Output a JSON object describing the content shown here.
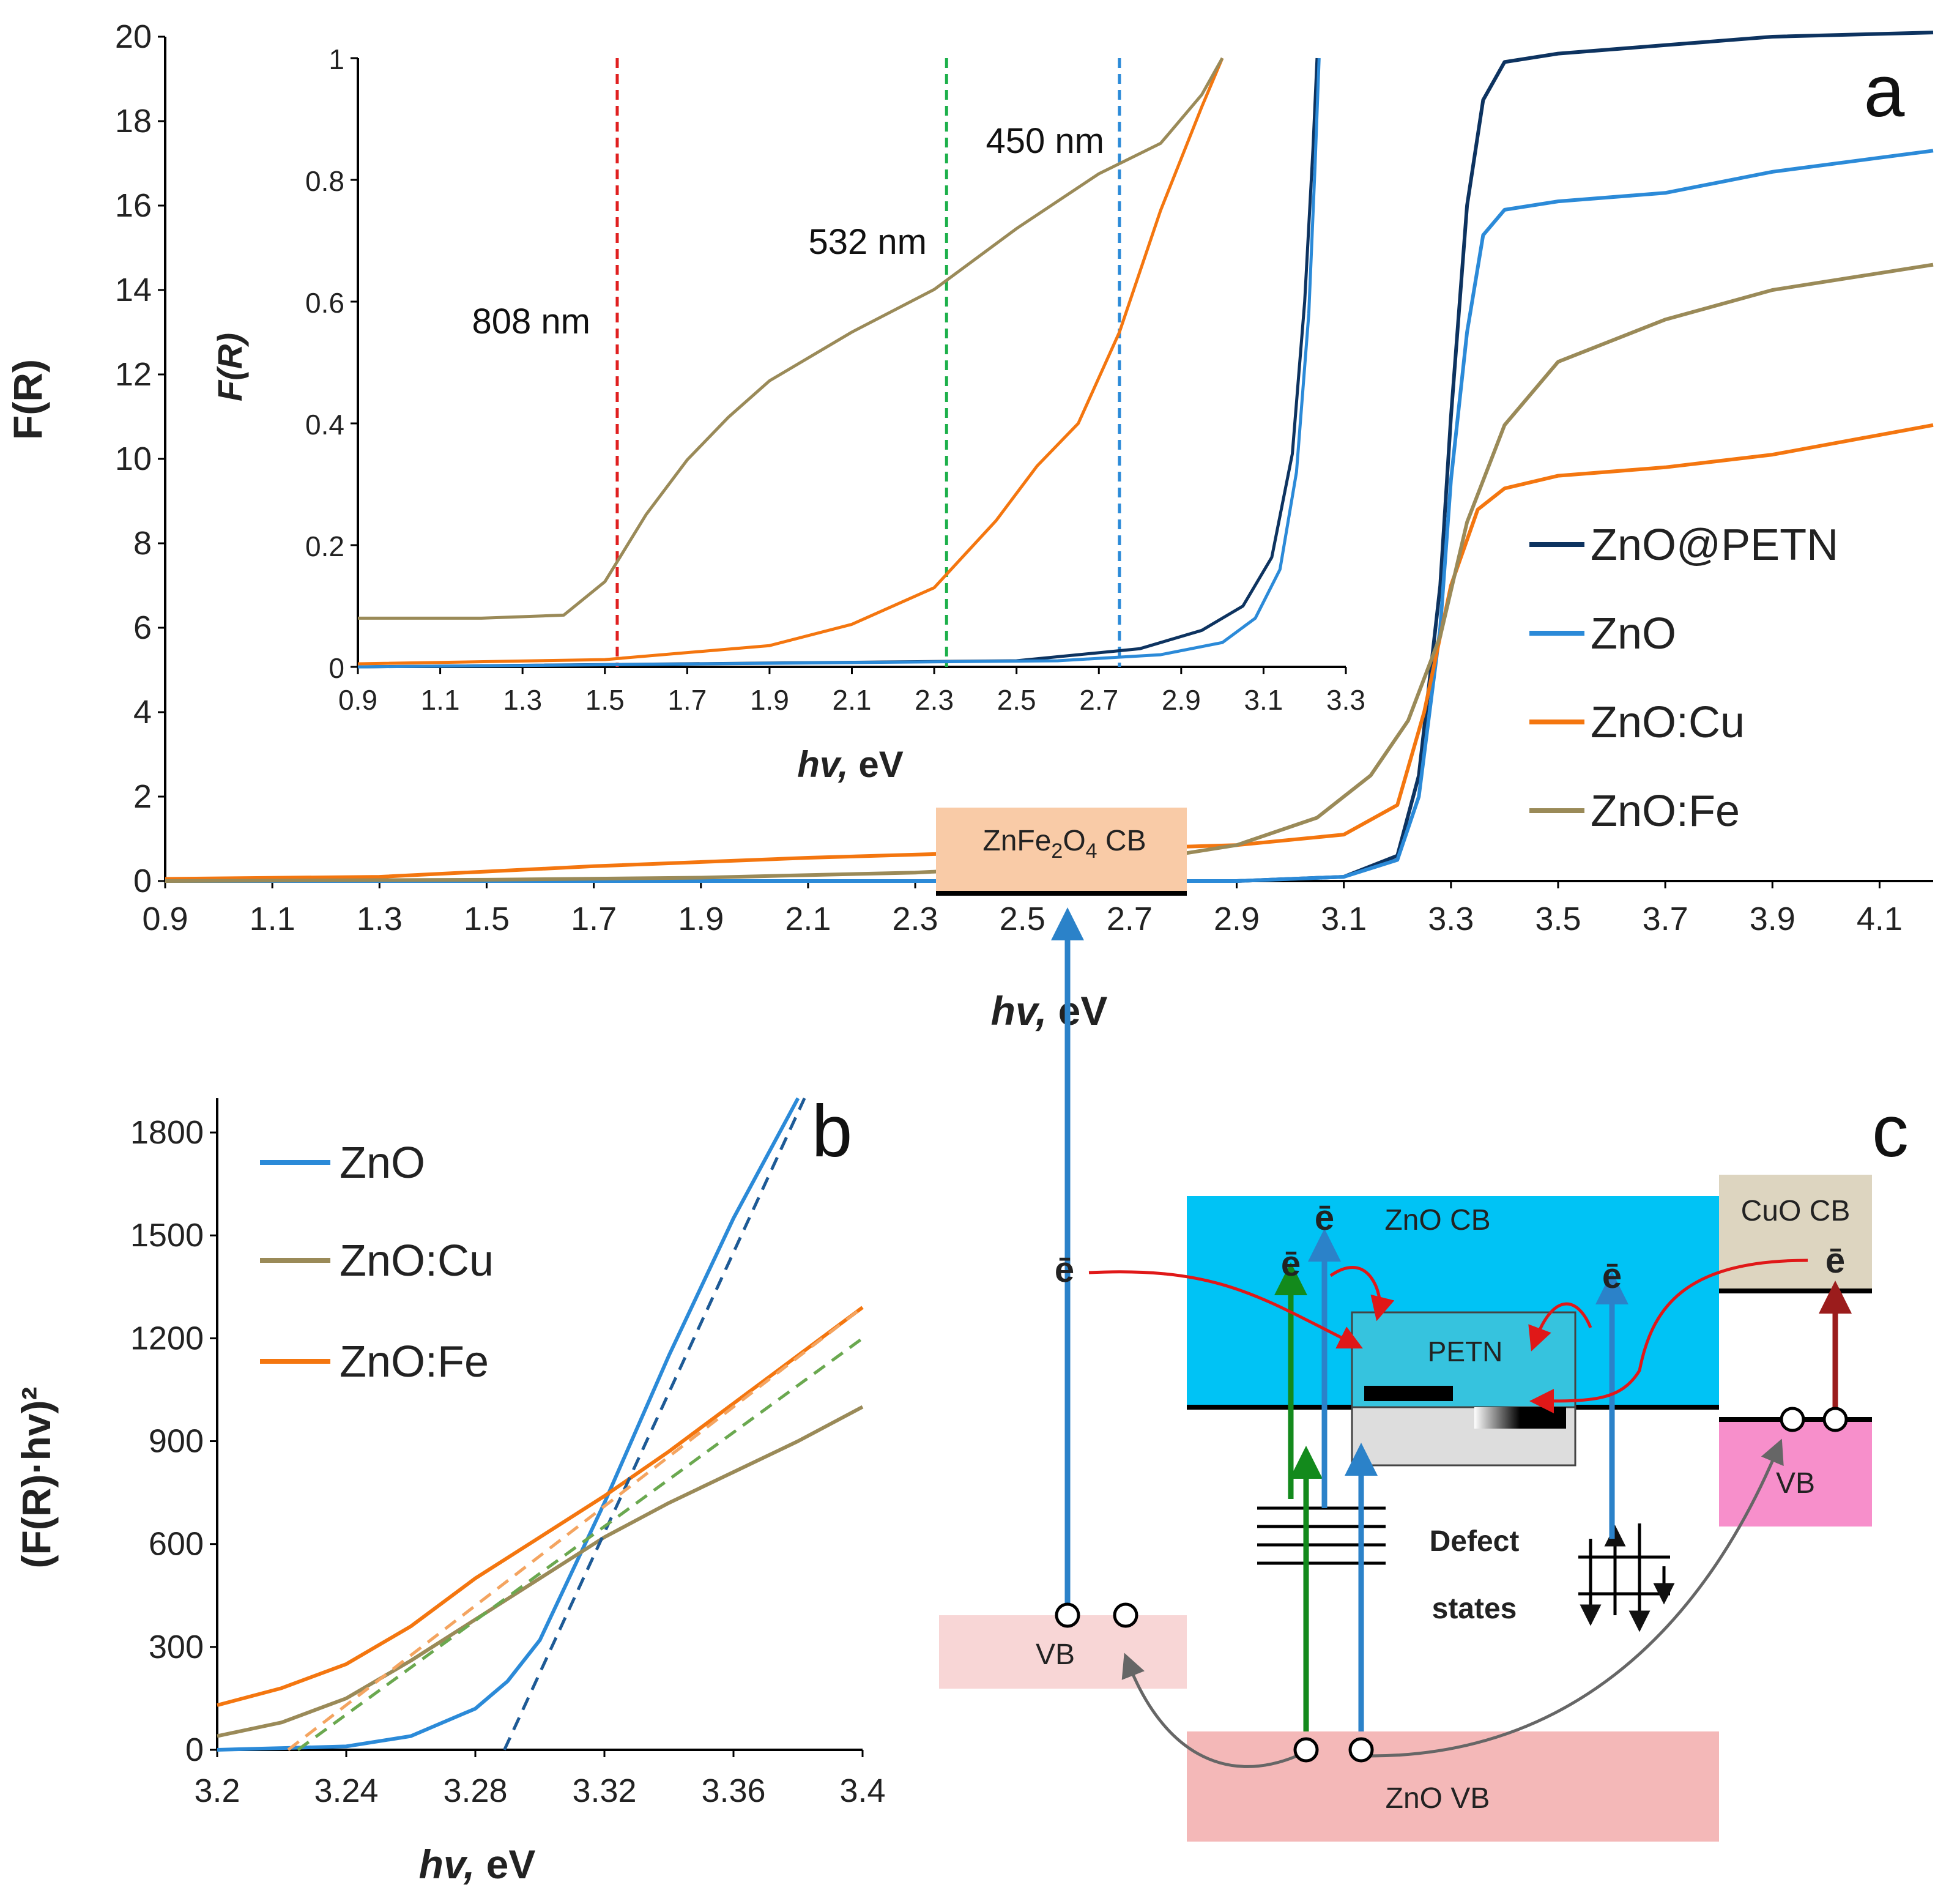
{
  "chart_data": [
    {
      "panel": "a",
      "type": "line",
      "xlabel_bold": "hv,",
      "xlabel_rest": " eV",
      "ylabel": "F(R)",
      "xlim": [
        0.9,
        4.2
      ],
      "ylim": [
        0,
        20
      ],
      "xticks": [
        "0.9",
        "1.1",
        "1.3",
        "1.5",
        "1.7",
        "1.9",
        "2.1",
        "2.3",
        "2.5",
        "2.7",
        "2.9",
        "3.1",
        "3.3",
        "3.5",
        "3.7",
        "3.9",
        "4.1"
      ],
      "yticks": [
        "0",
        "2",
        "4",
        "6",
        "8",
        "10",
        "12",
        "14",
        "16",
        "18",
        "20"
      ],
      "series": [
        {
          "name": "ZnO@PETN",
          "color": "#0d3360",
          "x": [
            0.9,
            2.9,
            3.1,
            3.2,
            3.24,
            3.28,
            3.3,
            3.33,
            3.36,
            3.4,
            3.5,
            3.7,
            3.9,
            4.2
          ],
          "y": [
            0,
            0,
            0.1,
            0.6,
            2.5,
            7,
            11,
            16,
            18.5,
            19.4,
            19.6,
            19.8,
            20,
            20.1
          ]
        },
        {
          "name": "ZnO",
          "color": "#2b8ad8",
          "x": [
            0.9,
            2.9,
            3.1,
            3.2,
            3.24,
            3.28,
            3.3,
            3.33,
            3.36,
            3.4,
            3.5,
            3.7,
            3.9,
            4.2
          ],
          "y": [
            0,
            0,
            0.1,
            0.5,
            2,
            6,
            9.5,
            13,
            15.3,
            15.9,
            16.1,
            16.3,
            16.8,
            17.3
          ]
        },
        {
          "name": "ZnO:Cu",
          "color": "#f4760f",
          "x": [
            0.9,
            1.3,
            1.7,
            2.1,
            2.5,
            2.9,
            3.1,
            3.2,
            3.25,
            3.3,
            3.35,
            3.4,
            3.5,
            3.7,
            3.9,
            4.2
          ],
          "y": [
            0.05,
            0.1,
            0.35,
            0.55,
            0.7,
            0.85,
            1.1,
            1.8,
            4,
            7,
            8.8,
            9.3,
            9.6,
            9.8,
            10.1,
            10.8
          ]
        },
        {
          "name": "ZnO:Fe",
          "color": "#9a8a58",
          "x": [
            0.9,
            1.5,
            1.9,
            2.3,
            2.7,
            2.9,
            3.05,
            3.15,
            3.22,
            3.28,
            3.33,
            3.4,
            3.5,
            3.7,
            3.9,
            4.2
          ],
          "y": [
            0,
            0.03,
            0.08,
            0.2,
            0.45,
            0.85,
            1.5,
            2.5,
            3.8,
            5.8,
            8.5,
            10.8,
            12.3,
            13.3,
            14,
            14.6
          ]
        }
      ],
      "inset": {
        "ylabel": "F(R)",
        "xlabel_bold": "hv,",
        "xlabel_rest": " eV",
        "xlim": [
          0.9,
          3.3
        ],
        "ylim": [
          0,
          1
        ],
        "xticks": [
          "0.9",
          "1.1",
          "1.3",
          "1.5",
          "1.7",
          "1.9",
          "2.1",
          "2.3",
          "2.5",
          "2.7",
          "2.9",
          "3.1",
          "3.3"
        ],
        "yticks": [
          "0",
          "0.2",
          "0.4",
          "0.6",
          "0.8",
          "1"
        ],
        "vlines": [
          {
            "label": "808 nm",
            "x": 1.53,
            "color": "#e02020"
          },
          {
            "label": "532 nm",
            "x": 2.33,
            "color": "#1db04b"
          },
          {
            "label": "450 nm",
            "x": 2.75,
            "color": "#2b8ad8"
          }
        ],
        "series": [
          {
            "name": "ZnO@PETN",
            "color": "#0d3360",
            "x": [
              0.9,
              2.5,
              2.8,
              2.95,
              3.05,
              3.12,
              3.17,
              3.2,
              3.22,
              3.23
            ],
            "y": [
              0,
              0.01,
              0.03,
              0.06,
              0.1,
              0.18,
              0.35,
              0.6,
              0.85,
              1.0
            ]
          },
          {
            "name": "ZnO",
            "color": "#2b8ad8",
            "x": [
              0.9,
              2.6,
              2.85,
              3.0,
              3.08,
              3.14,
              3.18,
              3.21,
              3.225,
              3.235
            ],
            "y": [
              0,
              0.01,
              0.02,
              0.04,
              0.08,
              0.16,
              0.32,
              0.58,
              0.82,
              1.0
            ]
          },
          {
            "name": "ZnO:Cu",
            "color": "#f4760f",
            "x": [
              0.9,
              1.5,
              1.9,
              2.1,
              2.3,
              2.45,
              2.55,
              2.65,
              2.75,
              2.85,
              2.95,
              3.0
            ],
            "y": [
              0.005,
              0.012,
              0.035,
              0.07,
              0.13,
              0.24,
              0.33,
              0.4,
              0.55,
              0.75,
              0.92,
              1.0
            ]
          },
          {
            "name": "ZnO:Fe",
            "color": "#9a8a58",
            "x": [
              0.9,
              1.2,
              1.4,
              1.5,
              1.6,
              1.7,
              1.8,
              1.9,
              2.1,
              2.3,
              2.5,
              2.7,
              2.85,
              2.95,
              3.0
            ],
            "y": [
              0.08,
              0.08,
              0.085,
              0.14,
              0.25,
              0.34,
              0.41,
              0.47,
              0.55,
              0.62,
              0.72,
              0.81,
              0.86,
              0.94,
              1.0
            ]
          }
        ]
      }
    },
    {
      "panel": "b",
      "type": "line",
      "xlabel_bold": "hv,",
      "xlabel_rest": " eV",
      "ylabel": "(F(R)·hv)²",
      "xlim": [
        3.2,
        3.4
      ],
      "ylim": [
        0,
        1900
      ],
      "xticks": [
        "3.2",
        "3.24",
        "3.28",
        "3.32",
        "3.36",
        "3.4"
      ],
      "yticks": [
        "0",
        "300",
        "600",
        "900",
        "1200",
        "1500",
        "1800"
      ],
      "legend": [
        "ZnO",
        "ZnO:Cu",
        "ZnO:Fe"
      ],
      "series": [
        {
          "name": "ZnO",
          "color": "#2b8ad8",
          "x": [
            3.2,
            3.24,
            3.26,
            3.28,
            3.29,
            3.3,
            3.32,
            3.34,
            3.36,
            3.38
          ],
          "y": [
            0,
            10,
            40,
            120,
            200,
            320,
            720,
            1150,
            1550,
            1900
          ]
        },
        {
          "name": "ZnO:Cu",
          "color": "#9a8a58",
          "x": [
            3.2,
            3.22,
            3.24,
            3.26,
            3.28,
            3.3,
            3.32,
            3.34,
            3.36,
            3.38,
            3.4
          ],
          "y": [
            40,
            80,
            150,
            260,
            380,
            500,
            620,
            720,
            810,
            900,
            1000
          ]
        },
        {
          "name": "ZnO:Fe",
          "color": "#f4760f",
          "x": [
            3.2,
            3.22,
            3.24,
            3.26,
            3.28,
            3.3,
            3.32,
            3.34,
            3.36,
            3.38,
            3.4
          ],
          "y": [
            130,
            180,
            250,
            360,
            500,
            620,
            740,
            870,
            1010,
            1150,
            1290
          ]
        }
      ],
      "fits": [
        {
          "color": "#1d5a96",
          "x": [
            3.289,
            3.382
          ],
          "y": [
            0,
            1900
          ]
        },
        {
          "color": "#6aa84f",
          "x": [
            3.225,
            3.4
          ],
          "y": [
            0,
            1200
          ]
        },
        {
          "color": "#f4a460",
          "x": [
            3.222,
            3.4
          ],
          "y": [
            0,
            1290
          ]
        }
      ]
    }
  ],
  "panel_labels": {
    "a": "a",
    "b": "b",
    "c": "c"
  },
  "diagram_c": {
    "znfe_cb_main": "ZnFe",
    "znfe_cb_sub2": "2",
    "znfe_cb_o": "O",
    "znfe_cb_sub4": "4",
    "znfe_cb_rest": " CB",
    "zno_cb": "ZnO CB",
    "cuo_cb": "CuO CB",
    "petn": "PETN",
    "defect_line1": "Defect",
    "defect_line2": "states",
    "vb_left": "VB",
    "vb_right": "VB",
    "zno_vb": "ZnO VB",
    "electron": "ē",
    "colors": {
      "zno_cb": "#00c3f5",
      "znfe_cb": "#f9cba7",
      "cuo_cb": "#ddd5c0",
      "vb_left": "#f8d6d6",
      "vb_right": "#f78fcb",
      "zno_vb": "#f4b8b8",
      "petn": "#36c3de"
    }
  }
}
